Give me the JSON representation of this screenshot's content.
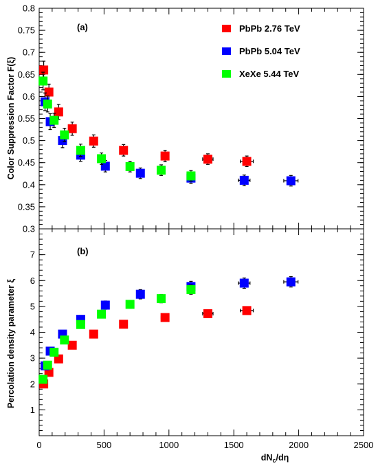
{
  "chart_data": [
    {
      "type": "scatter",
      "panel_label": "(a)",
      "ylabel": "Color Suppression Factor F(ξ)",
      "xlabel": "",
      "xlim": [
        0,
        2500
      ],
      "ylim": [
        0.3,
        0.8
      ],
      "xticks": [
        0,
        500,
        1000,
        1500,
        2000,
        2500
      ],
      "yticks": [
        0.3,
        0.35,
        0.4,
        0.45,
        0.5,
        0.55,
        0.6,
        0.65,
        0.7,
        0.75,
        0.8
      ],
      "ytick_labels": [
        "0.3",
        "0.35",
        "0.4",
        "0.45",
        "0.5",
        "0.55",
        "0.6",
        "0.65",
        "0.7",
        "0.75",
        "0.8"
      ],
      "grid": false,
      "legend_position": "top-right",
      "series": [
        {
          "name": "PbPb 2.76 TeV",
          "color": "#ff0000",
          "points": [
            {
              "x": 35,
              "y": 0.66,
              "yerr": 0.02
            },
            {
              "x": 75,
              "y": 0.61,
              "yerr": 0.018
            },
            {
              "x": 150,
              "y": 0.565,
              "yerr": 0.017
            },
            {
              "x": 255,
              "y": 0.527,
              "yerr": 0.015
            },
            {
              "x": 420,
              "y": 0.499,
              "yerr": 0.014
            },
            {
              "x": 650,
              "y": 0.478,
              "yerr": 0.013
            },
            {
              "x": 970,
              "y": 0.465,
              "yerr": 0.013,
              "xerr": 30
            },
            {
              "x": 1300,
              "y": 0.458,
              "yerr": 0.012,
              "xerr": 40
            },
            {
              "x": 1600,
              "y": 0.453,
              "yerr": 0.012,
              "xerr": 50
            }
          ]
        },
        {
          "name": "PbPb 5.04 TeV",
          "color": "#0000ff",
          "points": [
            {
              "x": 45,
              "y": 0.588,
              "yerr": 0.02
            },
            {
              "x": 85,
              "y": 0.543,
              "yerr": 0.018
            },
            {
              "x": 180,
              "y": 0.5,
              "yerr": 0.016
            },
            {
              "x": 320,
              "y": 0.467,
              "yerr": 0.014
            },
            {
              "x": 510,
              "y": 0.442,
              "yerr": 0.013
            },
            {
              "x": 780,
              "y": 0.426,
              "yerr": 0.012
            },
            {
              "x": 1170,
              "y": 0.415,
              "yerr": 0.012,
              "xerr": 30
            },
            {
              "x": 1580,
              "y": 0.41,
              "yerr": 0.012,
              "xerr": 45
            },
            {
              "x": 1940,
              "y": 0.409,
              "yerr": 0.012,
              "xerr": 55
            }
          ]
        },
        {
          "name": "XeXe 5.44 TeV",
          "color": "#00ff00",
          "points": [
            {
              "x": 30,
              "y": 0.635,
              "yerr": 0.02
            },
            {
              "x": 65,
              "y": 0.583,
              "yerr": 0.018
            },
            {
              "x": 115,
              "y": 0.546,
              "yerr": 0.016
            },
            {
              "x": 195,
              "y": 0.513,
              "yerr": 0.015
            },
            {
              "x": 320,
              "y": 0.478,
              "yerr": 0.014
            },
            {
              "x": 480,
              "y": 0.459,
              "yerr": 0.013
            },
            {
              "x": 700,
              "y": 0.441,
              "yerr": 0.012
            },
            {
              "x": 940,
              "y": 0.433,
              "yerr": 0.012
            },
            {
              "x": 1170,
              "y": 0.42,
              "yerr": 0.012
            }
          ]
        }
      ]
    },
    {
      "type": "scatter",
      "panel_label": "(b)",
      "ylabel": "Percolation density parameter  ξ",
      "xlabel": "dNc/dη",
      "xlim": [
        0,
        2500
      ],
      "ylim": [
        0,
        8
      ],
      "xticks": [
        0,
        500,
        1000,
        1500,
        2000,
        2500
      ],
      "xtick_labels": [
        "0",
        "500",
        "1000",
        "1500",
        "2000",
        "2500"
      ],
      "yticks": [
        1,
        2,
        3,
        4,
        5,
        6,
        7
      ],
      "ytick_labels": [
        "1",
        "2",
        "3",
        "4",
        "5",
        "6",
        "7"
      ],
      "grid": false,
      "series": [
        {
          "name": "PbPb 2.76 TeV",
          "color": "#ff0000",
          "points": [
            {
              "x": 35,
              "y": 2.0,
              "yerr": 0.1
            },
            {
              "x": 75,
              "y": 2.45,
              "yerr": 0.1
            },
            {
              "x": 150,
              "y": 2.97,
              "yerr": 0.1
            },
            {
              "x": 255,
              "y": 3.5,
              "yerr": 0.1
            },
            {
              "x": 420,
              "y": 3.93,
              "yerr": 0.1
            },
            {
              "x": 650,
              "y": 4.31,
              "yerr": 0.1
            },
            {
              "x": 970,
              "y": 4.57,
              "yerr": 0.1,
              "xerr": 30
            },
            {
              "x": 1300,
              "y": 4.72,
              "yerr": 0.1,
              "xerr": 40
            },
            {
              "x": 1600,
              "y": 4.84,
              "yerr": 0.1,
              "xerr": 50
            }
          ]
        },
        {
          "name": "PbPb 5.04 TeV",
          "color": "#0000ff",
          "points": [
            {
              "x": 45,
              "y": 2.7,
              "yerr": 0.12
            },
            {
              "x": 85,
              "y": 3.27,
              "yerr": 0.12
            },
            {
              "x": 180,
              "y": 3.93,
              "yerr": 0.13
            },
            {
              "x": 320,
              "y": 4.5,
              "yerr": 0.15
            },
            {
              "x": 510,
              "y": 5.05,
              "yerr": 0.16
            },
            {
              "x": 780,
              "y": 5.47,
              "yerr": 0.18
            },
            {
              "x": 1170,
              "y": 5.77,
              "yerr": 0.2,
              "xerr": 30
            },
            {
              "x": 1580,
              "y": 5.9,
              "yerr": 0.2,
              "xerr": 45
            },
            {
              "x": 1940,
              "y": 5.95,
              "yerr": 0.2,
              "xerr": 55
            }
          ]
        },
        {
          "name": "XeXe 5.44 TeV",
          "color": "#00ff00",
          "points": [
            {
              "x": 30,
              "y": 2.18,
              "yerr": 0.1
            },
            {
              "x": 65,
              "y": 2.73,
              "yerr": 0.12
            },
            {
              "x": 115,
              "y": 3.23,
              "yerr": 0.12
            },
            {
              "x": 195,
              "y": 3.7,
              "yerr": 0.12
            },
            {
              "x": 320,
              "y": 4.3,
              "yerr": 0.13
            },
            {
              "x": 480,
              "y": 4.7,
              "yerr": 0.14
            },
            {
              "x": 700,
              "y": 5.08,
              "yerr": 0.15
            },
            {
              "x": 940,
              "y": 5.3,
              "yerr": 0.16
            },
            {
              "x": 1170,
              "y": 5.65,
              "yerr": 0.18
            }
          ]
        }
      ]
    }
  ]
}
